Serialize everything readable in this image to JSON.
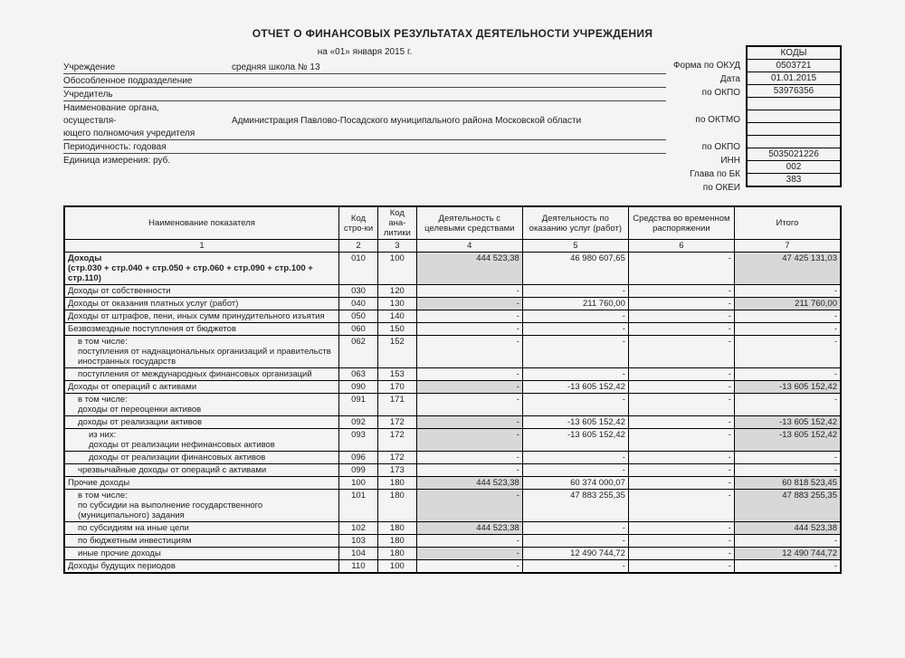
{
  "title": "ОТЧЕТ О ФИНАНСОВЫХ РЕЗУЛЬТАТАХ ДЕЯТЕЛЬНОСТИ УЧРЕЖДЕНИЯ",
  "dateLine": "на «01» января 2015 г.",
  "info": {
    "institution_label": "Учреждение",
    "institution_value": "средняя школа № 13",
    "subdivision_label": "Обособленное подразделение",
    "founder_label": "Учредитель",
    "authority_label1": "Наименование органа,",
    "authority_label2": "осуществля-",
    "authority_label3": "ющего полномочия учредителя",
    "authority_value": "Администрация Павлово-Посадского муниципального района Московской области",
    "periodicity_label": "Периодичность: годовая",
    "unit_label": "Единица измерения:  руб."
  },
  "codes": {
    "header": "КОДЫ",
    "labels": {
      "okud": "Форма по ОКУД",
      "date": "Дата",
      "okpo1": "по ОКПО",
      "oktmo": "по ОКТМО",
      "okpo2": "по ОКПО",
      "inn": "ИНН",
      "glava": "Глава по БК",
      "okei": "по ОКЕИ"
    },
    "values": {
      "okud": "0503721",
      "date": "01.01.2015",
      "okpo1": "53976356",
      "oktmo": "",
      "okpo2": "",
      "inn": "5035021226",
      "glava": "002",
      "okei": "383"
    }
  },
  "columns": {
    "c1": "Наименование показателя",
    "c2": "Код стро-ки",
    "c3": "Код ана-литики",
    "c4": "Деятельность с целевыми средствами",
    "c5": "Деятельность по оказанию услуг (работ)",
    "c6": "Средства во временном распоряжении",
    "c7": "Итого"
  },
  "colnums": {
    "n1": "1",
    "n2": "2",
    "n3": "3",
    "n4": "4",
    "n5": "5",
    "n6": "6",
    "n7": "7"
  },
  "rows": [
    {
      "name": "Доходы\n(стр.030 + стр.040 + стр.050 + стр.060 + стр.090 + стр.100 + стр.110)",
      "code": "010",
      "ana": "100",
      "c4": "444 523,38",
      "c5": "46 980 607,65",
      "c6": "-",
      "c7": "47 425 131,03",
      "bold": true,
      "shade47": true
    },
    {
      "name": "Доходы от собственности",
      "code": "030",
      "ana": "120",
      "c4": "-",
      "c5": "-",
      "c6": "-",
      "c7": "-"
    },
    {
      "name": "Доходы от оказания платных услуг (работ)",
      "code": "040",
      "ana": "130",
      "c4": "-",
      "c5": "211 760,00",
      "c6": "-",
      "c7": "211 760,00",
      "shade47": true
    },
    {
      "name": "Доходы от штрафов, пени, иных сумм принудительного изъятия",
      "code": "050",
      "ana": "140",
      "c4": "-",
      "c5": "-",
      "c6": "-",
      "c7": "-"
    },
    {
      "name": "Безвозмездные поступления от бюджетов",
      "code": "060",
      "ana": "150",
      "c4": "-",
      "c5": "-",
      "c6": "-",
      "c7": "-"
    },
    {
      "name": "в том числе:\nпоступления от наднациональных организаций и правительств иностранных государств",
      "code": "062",
      "ana": "152",
      "c4": "-",
      "c5": "-",
      "c6": "-",
      "c7": "-",
      "indent": 1
    },
    {
      "name": "поступления от международных финансовых организаций",
      "code": "063",
      "ana": "153",
      "c4": "-",
      "c5": "-",
      "c6": "-",
      "c7": "-",
      "indent": 1
    },
    {
      "name": "Доходы от операций с активами",
      "code": "090",
      "ana": "170",
      "c4": "-",
      "c5": "-13 605 152,42",
      "c6": "-",
      "c7": "-13 605 152,42",
      "shade47": true
    },
    {
      "name": "в том числе:\nдоходы от переоценки активов",
      "code": "091",
      "ana": "171",
      "c4": "-",
      "c5": "-",
      "c6": "-",
      "c7": "-",
      "indent": 1
    },
    {
      "name": "доходы от реализации активов",
      "code": "092",
      "ana": "172",
      "c4": "-",
      "c5": "-13 605 152,42",
      "c6": "-",
      "c7": "-13 605 152,42",
      "indent": 1,
      "shade47": true
    },
    {
      "name": "из них:\nдоходы от реализации нефинансовых активов",
      "code": "093",
      "ana": "172",
      "c4": "-",
      "c5": "-13 605 152,42",
      "c6": "-",
      "c7": "-13 605 152,42",
      "indent": 2,
      "shade47": true
    },
    {
      "name": "доходы от реализации финансовых активов",
      "code": "096",
      "ana": "172",
      "c4": "-",
      "c5": "-",
      "c6": "-",
      "c7": "-",
      "indent": 2
    },
    {
      "name": "чрезвычайные доходы от операций с активами",
      "code": "099",
      "ana": "173",
      "c4": "-",
      "c5": "-",
      "c6": "-",
      "c7": "-",
      "indent": 1
    },
    {
      "name": "Прочие доходы",
      "code": "100",
      "ana": "180",
      "c4": "444 523,38",
      "c5": "60 374 000,07",
      "c6": "-",
      "c7": "60 818 523,45",
      "shade47": true
    },
    {
      "name": "в том числе:\nпо субсидии на выполнение государственного (муниципального) задания",
      "code": "101",
      "ana": "180",
      "c4": "-",
      "c5": "47 883 255,35",
      "c6": "-",
      "c7": "47 883 255,35",
      "indent": 1,
      "shade47": true
    },
    {
      "name": "по субсидиям на иные цели",
      "code": "102",
      "ana": "180",
      "c4": "444 523,38",
      "c5": "-",
      "c6": "-",
      "c7": "444 523,38",
      "indent": 1,
      "shade47": true
    },
    {
      "name": "по бюджетным инвестициям",
      "code": "103",
      "ana": "180",
      "c4": "-",
      "c5": "-",
      "c6": "-",
      "c7": "-",
      "indent": 1
    },
    {
      "name": "иные прочие доходы",
      "code": "104",
      "ana": "180",
      "c4": "-",
      "c5": "12 490 744,72",
      "c6": "-",
      "c7": "12 490 744,72",
      "indent": 1,
      "shade47": true
    },
    {
      "name": "Доходы будущих периодов",
      "code": "110",
      "ana": "100",
      "c4": "-",
      "c5": "-",
      "c6": "-",
      "c7": "-"
    }
  ]
}
